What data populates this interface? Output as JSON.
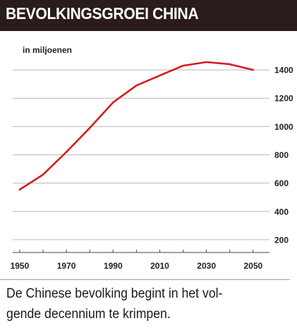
{
  "header": {
    "title": "BEVOLKINGSGROEI CHINA"
  },
  "chart_data": {
    "type": "line",
    "ylabel": "in miljoenen",
    "x_ticks": [
      1950,
      1970,
      1990,
      2010,
      2030,
      2050
    ],
    "y_ticks": [
      200,
      400,
      600,
      800,
      1000,
      1200,
      1400
    ],
    "xlim": [
      1947,
      2057
    ],
    "ylim": [
      110,
      1520
    ],
    "grid": "horizontal",
    "series": [
      {
        "color": "#d71a21",
        "x": [
          1950,
          1960,
          1970,
          1980,
          1990,
          2000,
          2010,
          2020,
          2030,
          2040,
          2050
        ],
        "y": [
          554,
          660,
          820,
          990,
          1170,
          1290,
          1360,
          1430,
          1455,
          1440,
          1400
        ]
      }
    ]
  },
  "caption": {
    "line1": "De Chinese bevolking begint in het vol-",
    "line2": "gende decennium te krimpen."
  },
  "colors": {
    "header_bg": "#2a1b1d",
    "line": "#d71a21",
    "grid": "#b9b9b9"
  }
}
